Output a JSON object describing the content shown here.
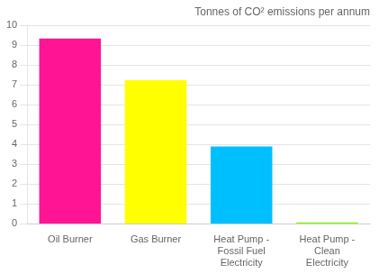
{
  "chart_data": {
    "type": "bar",
    "annotation": "Tonnes of CO² emissions per annum",
    "categories": [
      "Oil Burner",
      "Gas Burner",
      "Heat Pump -\nFossil Fuel\nElectricity",
      "Heat Pump -\nClean\nElectricity"
    ],
    "values": [
      9.35,
      7.25,
      3.9,
      0.07
    ],
    "colors": [
      "#FF1493",
      "#FFFF00",
      "#00BFFF",
      "#80FF00"
    ],
    "ylim": [
      0,
      10
    ],
    "yticks": [
      0,
      1,
      2,
      3,
      4,
      5,
      6,
      7,
      8,
      9,
      10
    ],
    "grid": true
  }
}
